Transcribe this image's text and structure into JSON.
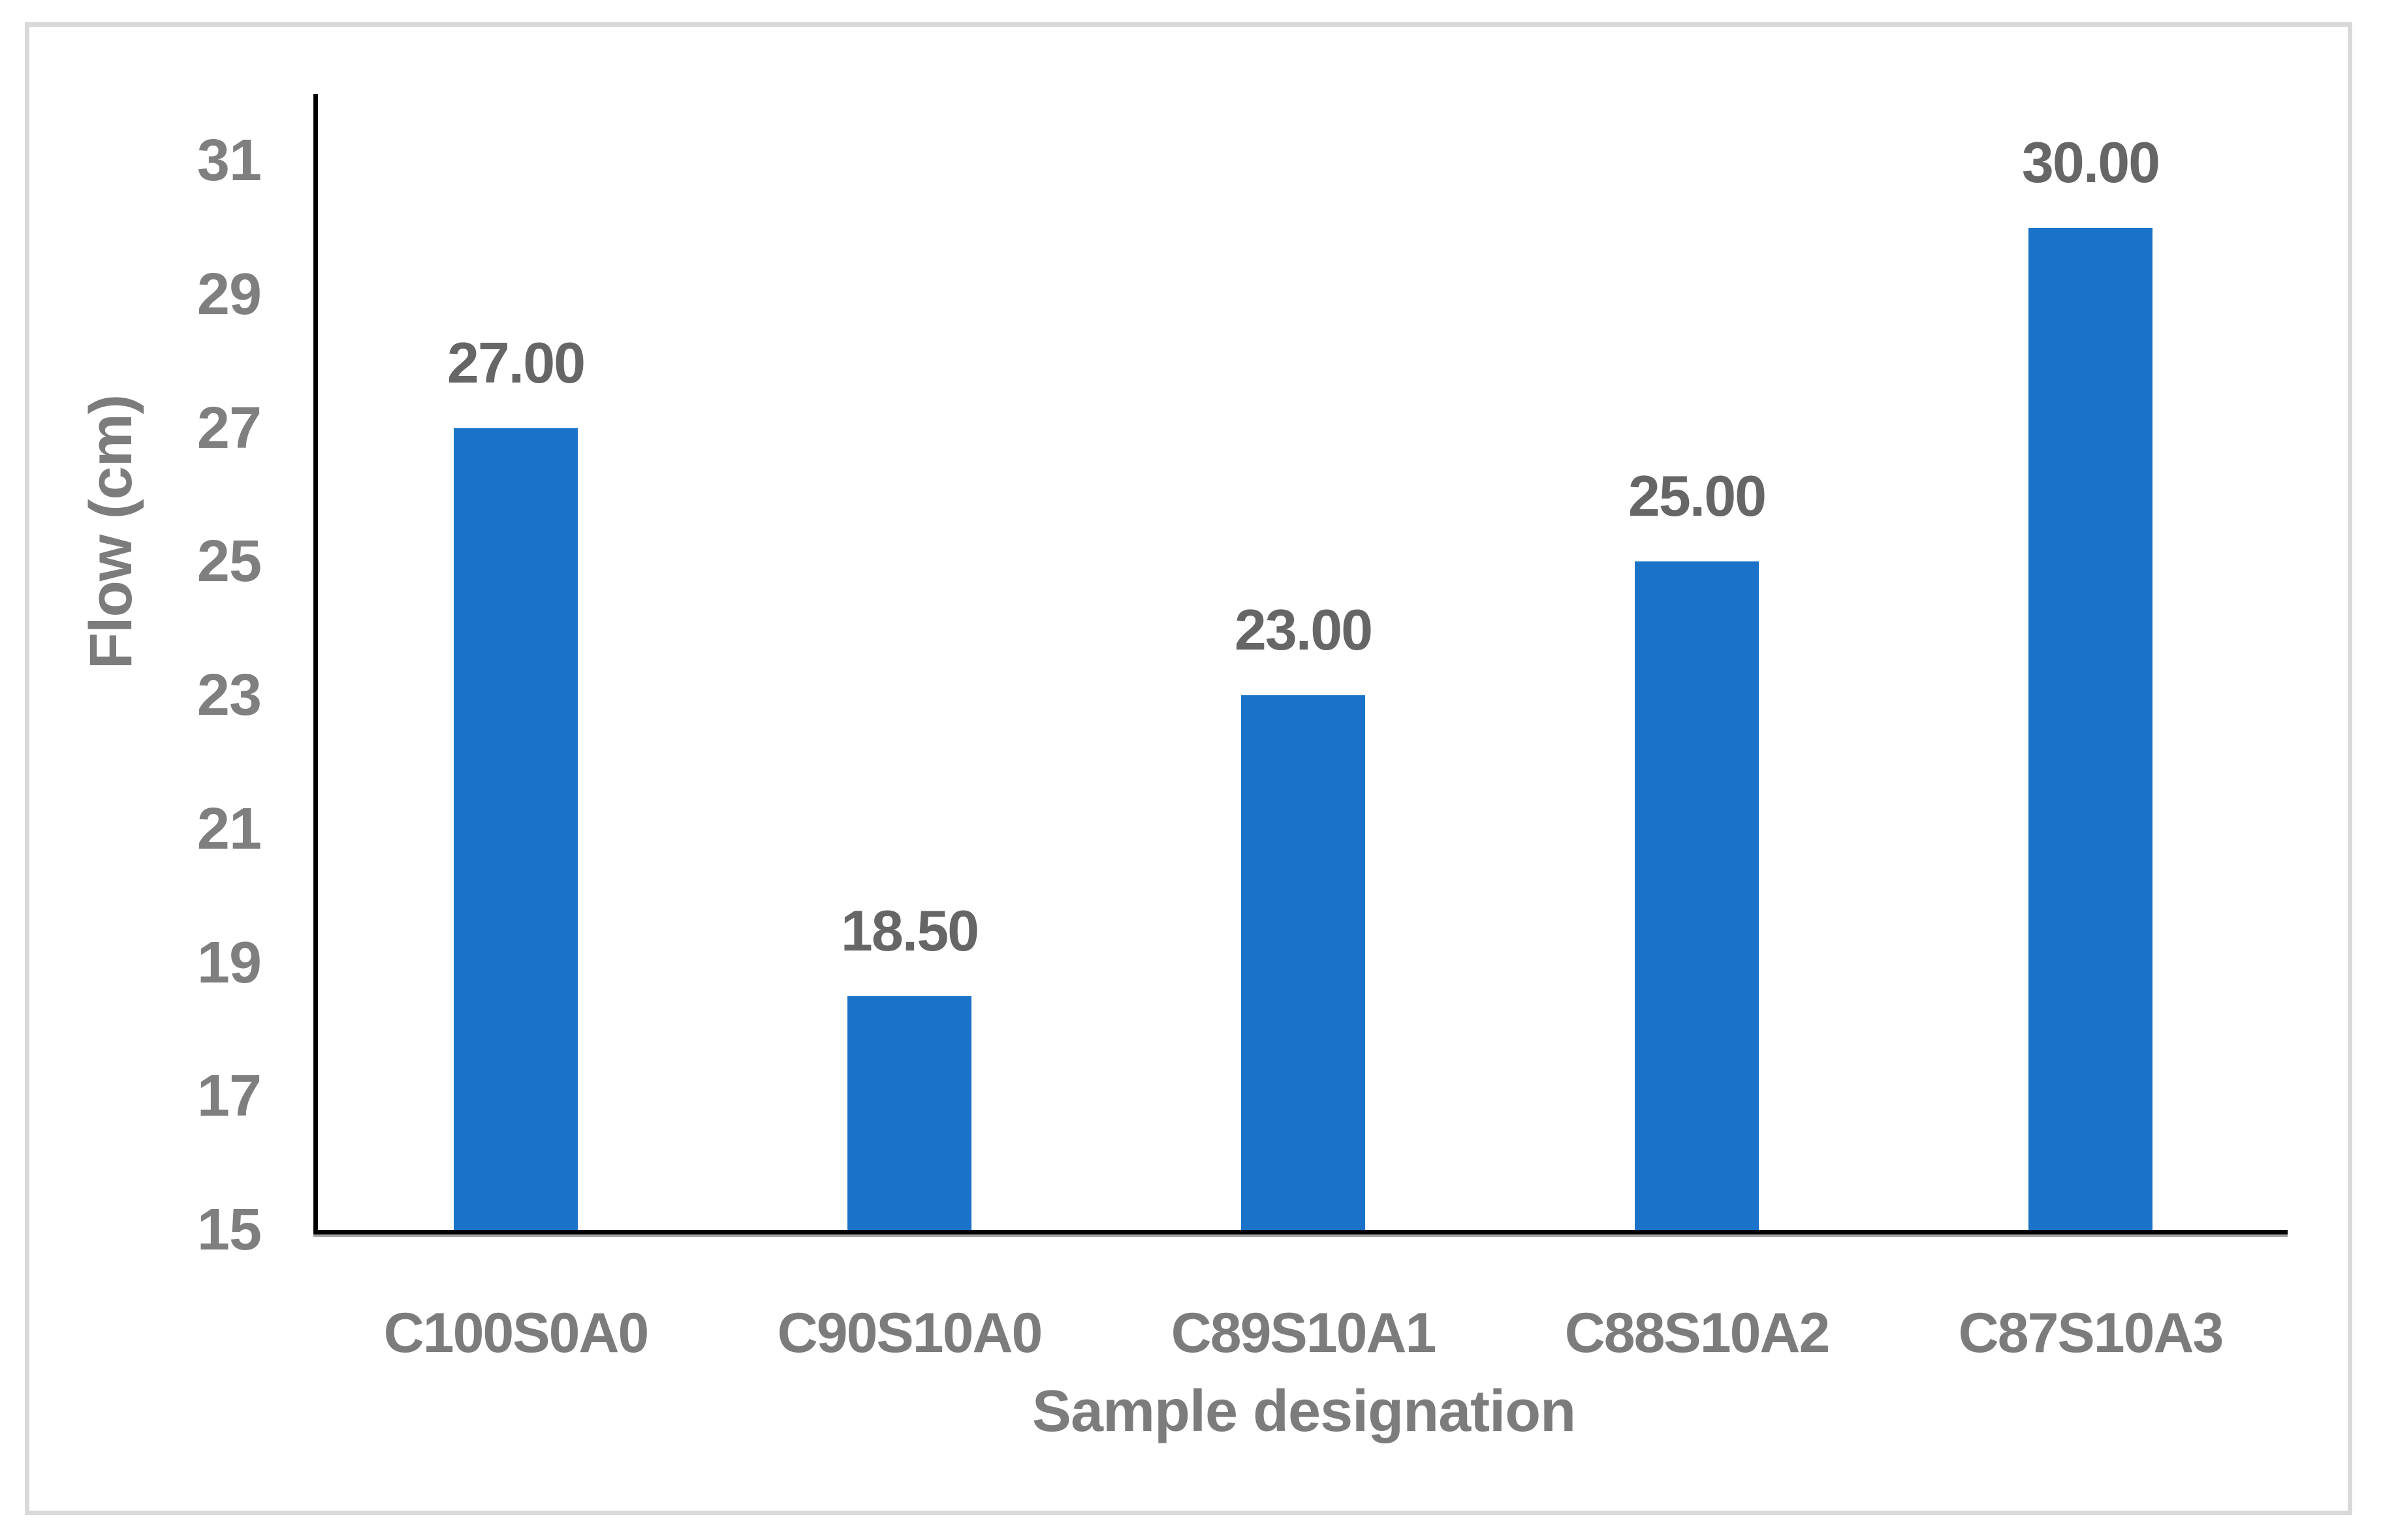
{
  "chart_data": {
    "type": "bar",
    "categories": [
      "C100S0A0",
      "C90S10A0",
      "C89S10A1",
      "C88S10A2",
      "C87S10A3"
    ],
    "values": [
      27.0,
      18.5,
      23.0,
      25.0,
      30.0
    ],
    "data_labels": [
      "27.00",
      "18.50",
      "23.00",
      "25.00",
      "30.00"
    ],
    "xlabel": "Sample designation",
    "ylabel": "Flow (cm)",
    "ylim": [
      15,
      32
    ],
    "yticks": [
      15,
      17,
      19,
      21,
      23,
      25,
      27,
      29,
      31
    ],
    "grid": false,
    "legend": "none",
    "colors": {
      "bar": "#1A73C8",
      "tick_label": "#7F7F7F",
      "category_label": "#7C7C7C",
      "data_label": "#666666",
      "axis_title": "#7C7C7C",
      "axis_line": "#000000",
      "axis_shadow": "#A6A6A6",
      "frame_border": "#D9D9D9",
      "background": "#FFFFFF"
    }
  }
}
